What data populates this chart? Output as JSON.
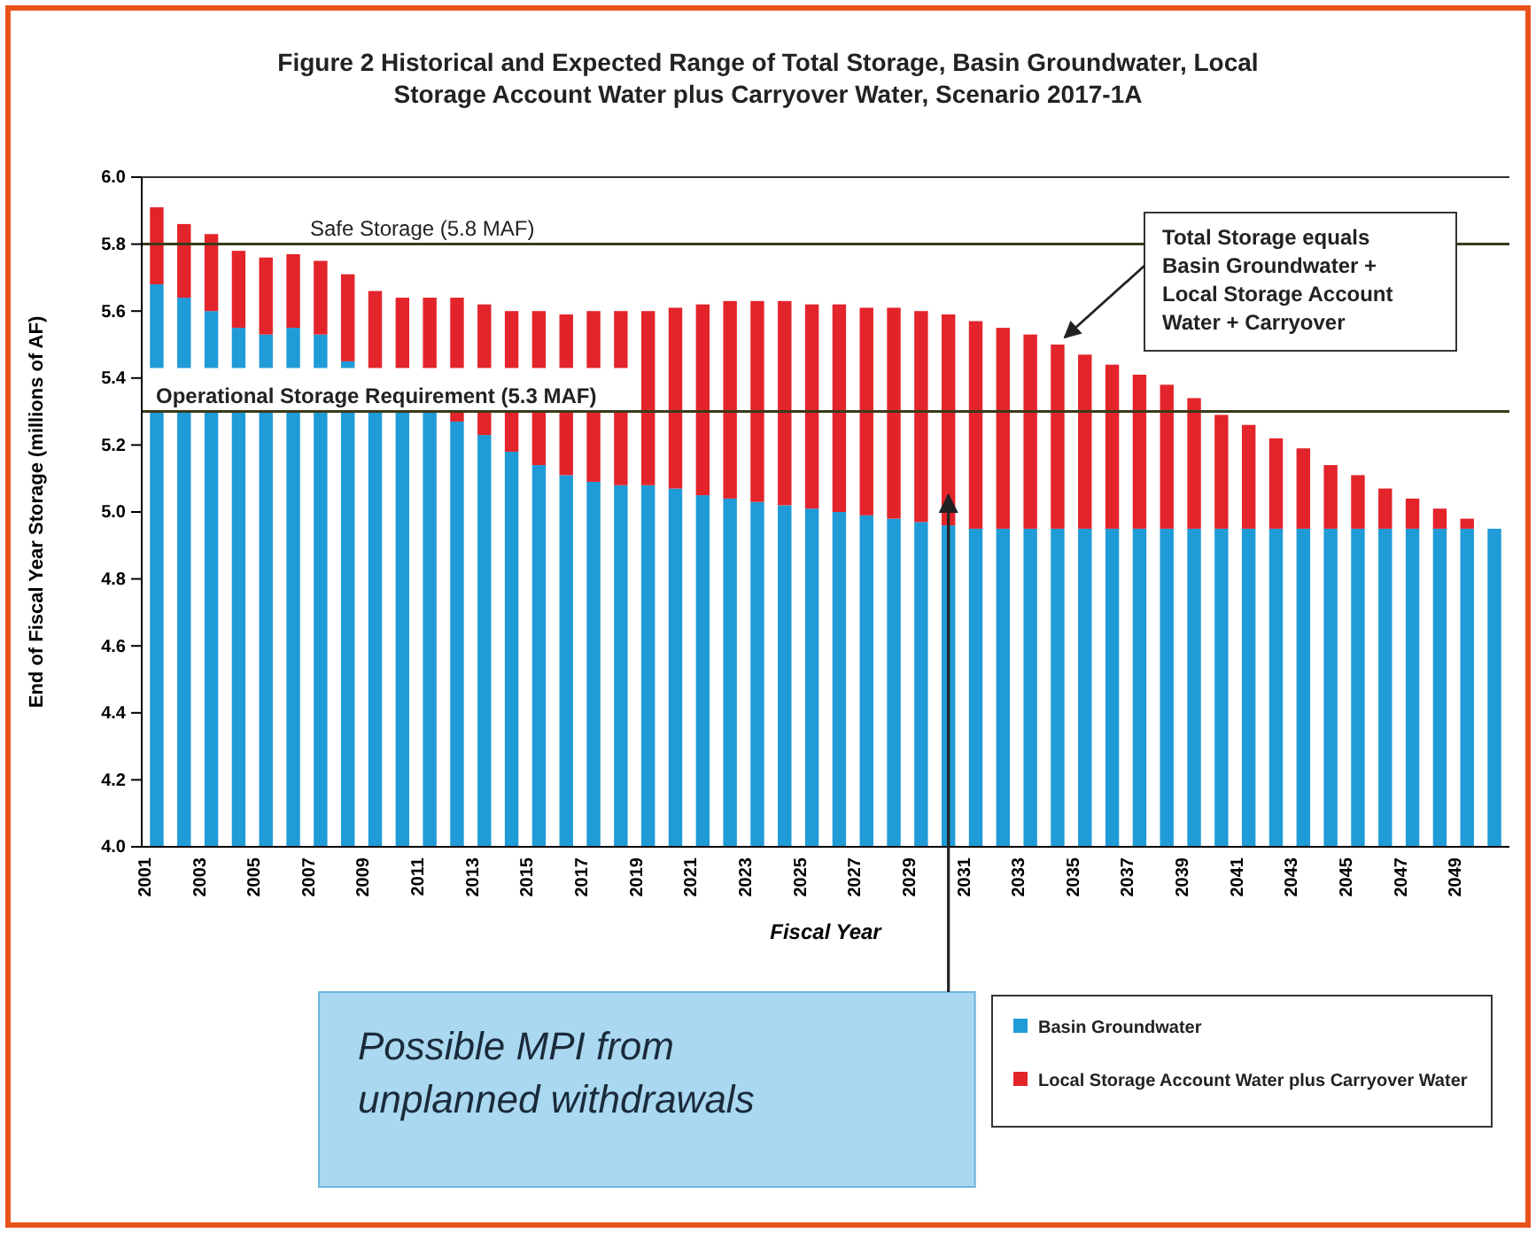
{
  "chart_data": {
    "type": "bar",
    "title": "Figure 2 Historical and Expected Range of Total Storage, Basin Groundwater, Local Storage Account Water plus Carryover Water, Scenario 2017-1A",
    "xlabel": "Fiscal Year",
    "ylabel": "End of Fiscal Year Storage (millions of AF)",
    "categories": [
      "2001",
      null,
      "2003",
      null,
      "2005",
      null,
      "2007",
      null,
      "2009",
      null,
      "2011",
      null,
      "2013",
      null,
      "2015",
      null,
      "2017",
      null,
      "2019",
      null,
      "2021",
      null,
      "2023",
      null,
      "2025",
      null,
      "2027",
      null,
      "2029",
      null,
      "2031",
      null,
      "2033",
      null,
      "2035",
      null,
      "2037",
      null,
      "2039",
      null,
      "2041",
      null,
      "2043",
      null,
      "2045",
      null,
      "2047",
      null,
      "2049",
      null
    ],
    "series": [
      {
        "name": "Basin Groundwater",
        "color": "#1f9bd7",
        "base": [
          4,
          4,
          4,
          4,
          4,
          4,
          4,
          4,
          4,
          4,
          4,
          4,
          4,
          4,
          4,
          4,
          4,
          4,
          4,
          4,
          4,
          4,
          4,
          4,
          4,
          4,
          4,
          4,
          4,
          4,
          4,
          4,
          4,
          4,
          4,
          4,
          4,
          4,
          4,
          4,
          4,
          4,
          4,
          4,
          4,
          4,
          4,
          4,
          4,
          4
        ],
        "values": [
          1.3,
          1.3,
          1.3,
          1.3,
          1.3,
          1.3,
          1.3,
          1.3,
          1.3,
          1.3,
          1.3,
          1.27,
          1.23,
          1.18,
          1.14,
          1.11,
          1.09,
          1.08,
          1.08,
          1.07,
          1.05,
          1.04,
          1.03,
          1.02,
          1.01,
          1.0,
          0.99,
          0.98,
          0.97,
          0.96,
          0.95,
          0.95,
          0.95,
          0.95,
          0.95,
          0.95,
          0.95,
          0.95,
          0.95,
          0.95,
          0.95,
          0.95,
          0.95,
          0.95,
          0.95,
          0.95,
          0.95,
          0.95,
          0.95,
          0.95
        ]
      },
      {
        "name": "Local Storage Account Water plus Carryover Water",
        "color": "#e3242b",
        "base": [
          null,
          null,
          null,
          null,
          null,
          null,
          null,
          null,
          null,
          null,
          null,
          5.27,
          5.23,
          5.18,
          5.14,
          5.11,
          5.09,
          5.08,
          5.08,
          5.07,
          5.05,
          5.04,
          5.03,
          5.02,
          5.01,
          5.0,
          4.99,
          4.98,
          4.97,
          4.96,
          4.95,
          4.95,
          4.95,
          4.95,
          4.95,
          4.95,
          4.95,
          4.95,
          4.95,
          4.95,
          4.95,
          4.95,
          4.95,
          4.95,
          4.95,
          4.95,
          4.95,
          4.95,
          4.95,
          null
        ],
        "values": [
          null,
          null,
          null,
          null,
          null,
          null,
          null,
          null,
          null,
          null,
          null,
          0.03,
          0.07,
          0.12,
          0.16,
          0.19,
          0.21,
          0.22,
          0.52,
          0.54,
          0.57,
          0.59,
          0.6,
          0.61,
          0.61,
          0.62,
          0.62,
          0.63,
          0.63,
          0.63,
          0.62,
          0.6,
          0.58,
          0.55,
          0.52,
          0.49,
          0.46,
          0.43,
          0.39,
          0.34,
          0.31,
          0.27,
          0.24,
          0.19,
          0.16,
          0.12,
          0.09,
          0.06,
          0.03,
          null
        ]
      },
      {
        "color": "#1f9bd7",
        "base": [
          5.43,
          5.43,
          5.43,
          5.43,
          5.43,
          5.43,
          5.43,
          5.43,
          null,
          null,
          null,
          null,
          null,
          null,
          null,
          null,
          null,
          null,
          null,
          null,
          null,
          null,
          null,
          null,
          null,
          null,
          null,
          null,
          null,
          null,
          null,
          null,
          null,
          null,
          null,
          null,
          null,
          null,
          null,
          null,
          null,
          null,
          null,
          null,
          null,
          null,
          null,
          null,
          null,
          null
        ],
        "values": [
          0.25,
          0.21,
          0.17,
          0.12,
          0.1,
          0.12,
          0.1,
          0.02,
          null,
          null,
          null,
          null,
          null,
          null,
          null,
          null,
          null,
          null,
          null,
          null,
          null,
          null,
          null,
          null,
          null,
          null,
          null,
          null,
          null,
          null,
          null,
          null,
          null,
          null,
          null,
          null,
          null,
          null,
          null,
          null,
          null,
          null,
          null,
          null,
          null,
          null,
          null,
          null,
          null,
          null
        ]
      },
      {
        "color": "#e3242b",
        "base": [
          5.68,
          5.64,
          5.6,
          5.55,
          5.53,
          5.55,
          5.53,
          5.45,
          5.43,
          5.43,
          5.43,
          5.43,
          5.43,
          5.43,
          5.43,
          5.43,
          5.43,
          5.43,
          null,
          null,
          null,
          null,
          null,
          null,
          null,
          null,
          null,
          null,
          null,
          null,
          null,
          null,
          null,
          null,
          null,
          null,
          null,
          null,
          null,
          null,
          null,
          null,
          null,
          null,
          null,
          null,
          null,
          null,
          null,
          null
        ],
        "values": [
          0.23,
          0.22,
          0.23,
          0.23,
          0.23,
          0.22,
          0.22,
          0.26,
          0.23,
          0.21,
          0.21,
          0.21,
          0.19,
          0.17,
          0.17,
          0.16,
          0.17,
          0.17,
          null,
          null,
          null,
          null,
          null,
          null,
          null,
          null,
          null,
          null,
          null,
          null,
          null,
          null,
          null,
          null,
          null,
          null,
          null,
          null,
          null,
          null,
          null,
          null,
          null,
          null,
          null,
          null,
          null,
          null,
          null,
          null
        ]
      }
    ],
    "ylim": [
      4,
      6
    ],
    "yticks": [
      {
        "value": 4,
        "label": "4.0"
      },
      4.2,
      4.4,
      4.6,
      4.8,
      {
        "value": 5,
        "label": "5.0"
      },
      5.2,
      5.4,
      5.6,
      5.8,
      {
        "value": 6,
        "label": "6.0"
      }
    ],
    "ref_lines": [
      {
        "axis": "y",
        "value": 5.8,
        "label": "Safe Storage (5.8 MAF)",
        "color": "#3a3a1a"
      },
      {
        "axis": "y",
        "value": 5.3,
        "label": "Operational Storage Requirement (5.3 MAF)",
        "color": "#3a3a1a"
      }
    ],
    "annotations": [
      "Total Storage equals Basin Groundwater + Local Storage Account Water + Carryover",
      "Possible MPI from unplanned withdrawals"
    ],
    "legend": "bottom right"
  }
}
